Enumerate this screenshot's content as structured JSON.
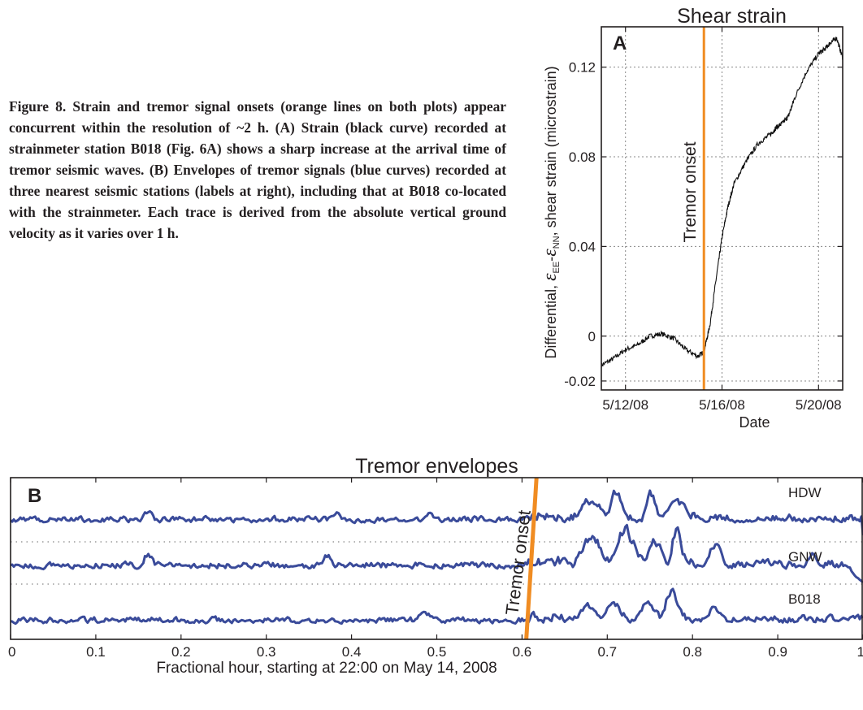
{
  "caption": {
    "bold_lead": "Figure 8. Strain and tremor signal onsets (orange lines on both plots) appear concurrent within the resolution of ~2 h. (A) Strain (black curve) recorded at strainmeter station B018 (Fig. 6A) shows a sharp increase at the arrival time of tremor seismic waves. (B) Envelopes of tremor signals (blue curves) recorded at three nearest seismic stations (labels at right), including that at B018 co-located with the strainmeter. Each trace is derived from the absolute vertical ground velocity as it varies over 1 h."
  },
  "colors": {
    "onset": "#f08c22",
    "strain": "#111111",
    "tremor": "#3a4b9a",
    "grid": "#888888"
  },
  "chart_data": [
    {
      "type": "line",
      "panel": "A",
      "title": "Shear strain",
      "xlabel": "Date",
      "ylabel_parts": [
        "Differential, ",
        "ε",
        "EE",
        "-",
        "ε",
        "NN",
        ", shear strain (microstrain)"
      ],
      "xticks": [
        "5/12/08",
        "5/16/08",
        "5/20/08"
      ],
      "xlim": [
        "5/11/08",
        "5/21/08"
      ],
      "yticks": [
        "-0.02",
        "0",
        "0.04",
        "0.08",
        "0.12"
      ],
      "ylim": [
        -0.024,
        0.138
      ],
      "grid": true,
      "onset": {
        "x": "5/15/08 06:00",
        "label": "Tremor onset"
      },
      "series": [
        {
          "x": [
            "5/11/08 00:00",
            "5/11/08 12:00",
            "5/12/08 00:00",
            "5/12/08 12:00",
            "5/13/08 00:00",
            "5/13/08 12:00",
            "5/14/08 00:00",
            "5/14/08 12:00",
            "5/15/08 00:00",
            "5/15/08 06:00",
            "5/15/08 12:00",
            "5/15/08 18:00",
            "5/16/08 00:00",
            "5/16/08 06:00",
            "5/16/08 12:00",
            "5/17/08 00:00",
            "5/17/08 12:00",
            "5/18/08 00:00",
            "5/18/08 06:00",
            "5/18/08 12:00",
            "5/18/08 18:00",
            "5/19/08 00:00",
            "5/19/08 12:00",
            "5/20/08 00:00",
            "5/20/08 06:00",
            "5/20/08 12:00",
            "5/20/08 18:00",
            "5/21/08 00:00"
          ],
          "values": [
            -0.013,
            -0.01,
            -0.006,
            -0.004,
            0.0,
            0.001,
            -0.001,
            -0.006,
            -0.009,
            -0.007,
            0.005,
            0.025,
            0.044,
            0.058,
            0.068,
            0.078,
            0.086,
            0.09,
            0.093,
            0.095,
            0.098,
            0.106,
            0.118,
            0.126,
            0.128,
            0.131,
            0.133,
            0.124
          ]
        }
      ]
    },
    {
      "type": "line",
      "panel": "B",
      "title": "Tremor envelopes",
      "xlabel": "Fractional hour, starting at 22:00 on May 14, 2008",
      "xticks": [
        "0",
        "0.1",
        "0.2",
        "0.3",
        "0.4",
        "0.5",
        "0.6",
        "0.7",
        "0.8",
        "0.9",
        "1"
      ],
      "xlim": [
        0,
        1
      ],
      "onset": {
        "x_bottom": 0.605,
        "x_top": 0.617,
        "label": "Tremor onset"
      },
      "series": [
        {
          "name": "HDW",
          "seed": 11,
          "bursts": [
            [
              0.66,
              0.7,
              0.9
            ],
            [
              0.7,
              0.72,
              1.3
            ],
            [
              0.74,
              0.76,
              1.1
            ],
            [
              0.76,
              0.8,
              0.8
            ],
            [
              0.15,
              0.17,
              0.5
            ],
            [
              0.37,
              0.39,
              0.45
            ],
            [
              0.48,
              0.5,
              0.4
            ]
          ]
        },
        {
          "name": "GNW",
          "seed": 23,
          "bursts": [
            [
              0.66,
              0.7,
              1.1
            ],
            [
              0.7,
              0.74,
              1.2
            ],
            [
              0.74,
              0.77,
              1.0
            ],
            [
              0.77,
              0.79,
              1.3
            ],
            [
              0.81,
              0.84,
              0.8
            ],
            [
              0.93,
              0.95,
              0.6
            ],
            [
              0.15,
              0.17,
              0.55
            ],
            [
              0.36,
              0.38,
              0.5
            ]
          ]
        },
        {
          "name": "B018",
          "seed": 37,
          "bursts": [
            [
              0.66,
              0.69,
              0.7
            ],
            [
              0.69,
              0.72,
              0.8
            ],
            [
              0.73,
              0.76,
              0.75
            ],
            [
              0.76,
              0.79,
              1.1
            ],
            [
              0.81,
              0.84,
              0.6
            ],
            [
              0.47,
              0.5,
              0.45
            ]
          ]
        }
      ]
    }
  ]
}
